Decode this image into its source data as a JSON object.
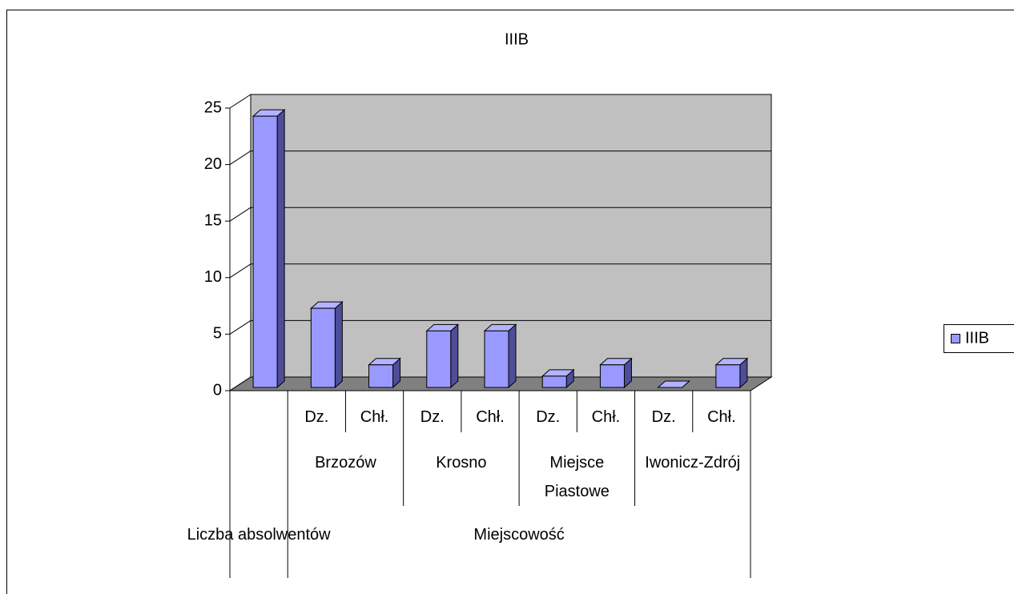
{
  "chart_data": {
    "type": "bar3d",
    "title": "IIIB",
    "categories": [
      null,
      "Dz.",
      "Chł.",
      "Dz.",
      "Chł.",
      "Dz.",
      "Chł.",
      "Dz.",
      "Chł."
    ],
    "groups": [
      "Brzozów",
      "Krosno",
      "Miejsce Piastowe",
      "Iwonicz-Zdrój"
    ],
    "top_groups": [
      "Liczba absolwentów",
      "Miejscowość"
    ],
    "series": [
      {
        "name": "IIIB",
        "color": "#9999ff",
        "values": [
          24,
          7,
          2,
          5,
          5,
          1,
          2,
          0,
          2
        ]
      }
    ],
    "ylim": [
      0,
      25
    ],
    "yticks": [
      0,
      5,
      10,
      15,
      20,
      25
    ],
    "grid": true,
    "legend": "right"
  }
}
